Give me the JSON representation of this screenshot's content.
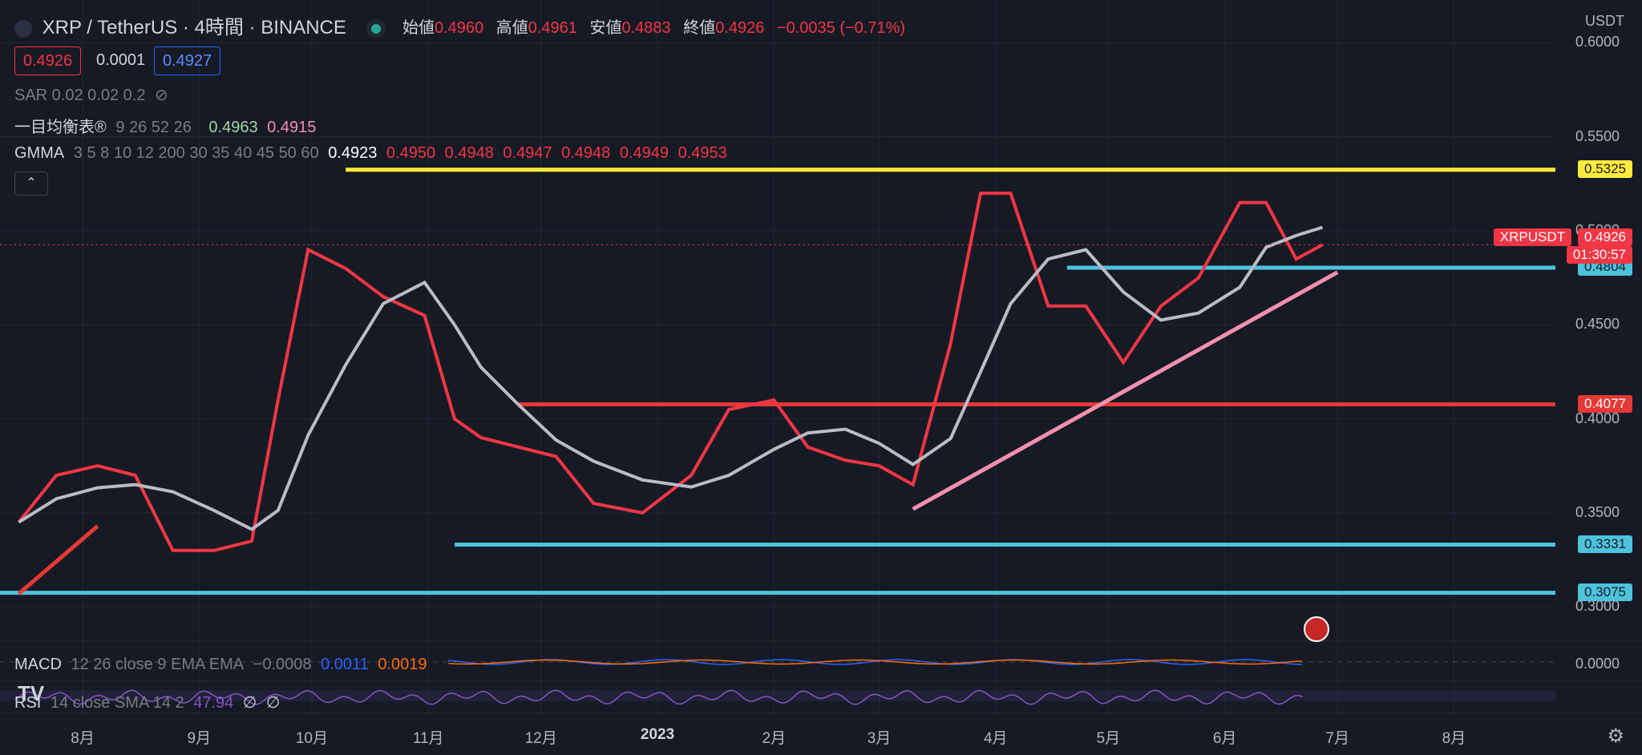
{
  "header": {
    "title": "XRP / TetherUS · 4時間 · BINANCE",
    "ohlc": [
      {
        "label": "始値",
        "value": "0.4960"
      },
      {
        "label": "高値",
        "value": "0.4961"
      },
      {
        "label": "安値",
        "value": "0.4883"
      },
      {
        "label": "終値",
        "value": "0.4926"
      }
    ],
    "change": "−0.0035 (−0.71%)",
    "bid": "0.4926",
    "spread": "0.0001",
    "ask": "0.4927",
    "currency": "USDT"
  },
  "indicators": {
    "sar": "SAR 0.02 0.02 0.2",
    "ichimoku_label": "一目均衡表®",
    "ichimoku_params": "9 26 52 26",
    "ichimoku_v1": "0.4963",
    "ichimoku_v2": "0.4915",
    "gmma_label": "GMMA",
    "gmma_params": "3 5 8 10 12 200 30 35 40 45 50 60",
    "gmma_v0": "0.4923",
    "gmma_vals": [
      "0.4950",
      "0.4948",
      "0.4947",
      "0.4948",
      "0.4949",
      "0.4953"
    ],
    "macd_label": "MACD",
    "macd_params": "12 26 close 9 EMA EMA",
    "macd_v1": "−0.0008",
    "macd_v2": "0.0011",
    "macd_v3": "0.0019",
    "macd_zero": "0.0000",
    "rsi_label": "RSI",
    "rsi_params": "14 close SMA 14 2",
    "rsi_value": "47.94",
    "rsi_na1": "∅",
    "rsi_na2": "∅"
  },
  "price_tag": {
    "symbol": "XRPUSDT",
    "price": "0.4926",
    "countdown": "01:30:57"
  },
  "colors": {
    "bg": "#161a25",
    "up": "#a5d6a7",
    "down": "#f23645",
    "yellow": "#ffeb3b",
    "cyan": "#4dc3db",
    "red_line": "#e53935",
    "pink": "#f48fb1"
  },
  "chart_data": {
    "type": "line",
    "title": "XRP / TetherUS · 4時間 · BINANCE",
    "xlabel": "",
    "ylabel": "",
    "ylim": [
      0.286,
      0.61
    ],
    "x_ticks": [
      "8月",
      "9月",
      "10月",
      "11月",
      "12月",
      "2023",
      "2月",
      "3月",
      "4月",
      "5月",
      "6月",
      "7月",
      "8月"
    ],
    "y_ticks": [
      "0.6000",
      "0.5500",
      "0.5000",
      "0.4500",
      "0.4000",
      "0.3500",
      "0.3000"
    ],
    "series": [
      {
        "name": "",
        "x": [
          "2022-07-15",
          "2022-07-25",
          "2022-08-05",
          "2022-08-15",
          "2022-08-25",
          "2022-09-05",
          "2022-09-15",
          "2022-09-22",
          "2022-09-30",
          "2022-10-10",
          "2022-10-20",
          "2022-10-31",
          "2022-11-08",
          "2022-11-15",
          "2022-11-25",
          "2022-12-05",
          "2022-12-15",
          "2022-12-28",
          "2023-01-10",
          "2023-01-20",
          "2023-02-01",
          "2023-02-10",
          "2023-02-20",
          "2023-03-01",
          "2023-03-10",
          "2023-03-20",
          "2023-03-28",
          "2023-04-05",
          "2023-04-15",
          "2023-04-25",
          "2023-05-05",
          "2023-05-15",
          "2023-05-25",
          "2023-06-05",
          "2023-06-12",
          "2023-06-20",
          "2023-06-27"
        ],
        "values": [
          0.345,
          0.37,
          0.375,
          0.37,
          0.33,
          0.33,
          0.335,
          0.41,
          0.49,
          0.48,
          0.465,
          0.455,
          0.4,
          0.39,
          0.385,
          0.38,
          0.355,
          0.35,
          0.37,
          0.405,
          0.41,
          0.385,
          0.378,
          0.375,
          0.365,
          0.44,
          0.52,
          0.52,
          0.46,
          0.46,
          0.43,
          0.46,
          0.475,
          0.515,
          0.515,
          0.485,
          0.4926
        ]
      }
    ],
    "horizontal_lines": [
      {
        "value": 0.5325,
        "label": "0.5325",
        "color": "#ffeb3b"
      },
      {
        "value": 0.4804,
        "label": "0.4804",
        "color": "#4dc3db"
      },
      {
        "value": 0.4077,
        "label": "0.4077",
        "color": "#e53935"
      },
      {
        "value": 0.3331,
        "label": "0.3331",
        "color": "#4dc3db"
      },
      {
        "value": 0.3075,
        "label": "0.3075",
        "color": "#4dc3db"
      }
    ],
    "trend_lines": [
      {
        "from": [
          "2022-07-15",
          0.307
        ],
        "to": [
          "2022-08-05",
          0.343
        ],
        "color": "#e53935"
      },
      {
        "from": [
          "2023-03-10",
          0.352
        ],
        "to": [
          "2023-07-01",
          0.478
        ],
        "color": "#f48fb1"
      }
    ],
    "current_price": 0.4926
  }
}
